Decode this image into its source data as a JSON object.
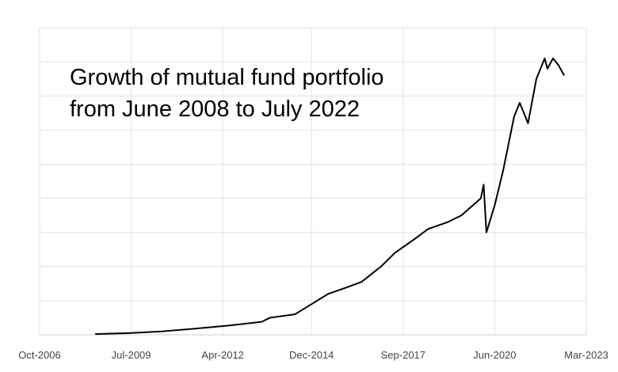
{
  "chart_data": {
    "type": "line",
    "title": "Growth of mutual fund portfolio from June 2008 to July 2022",
    "x": [
      "2008-06",
      "2009-06",
      "2010-06",
      "2011-06",
      "2012-06",
      "2013-06",
      "2013-09",
      "2014-06",
      "2015-01",
      "2015-06",
      "2016-01",
      "2016-06",
      "2017-01",
      "2017-06",
      "2018-01",
      "2018-06",
      "2019-01",
      "2019-06",
      "2020-01",
      "2020-02",
      "2020-03",
      "2020-06",
      "2020-09",
      "2021-01",
      "2021-03",
      "2021-06",
      "2021-09",
      "2021-12",
      "2022-01",
      "2022-03",
      "2022-05",
      "2022-07"
    ],
    "values": [
      0.02,
      0.05,
      0.1,
      0.18,
      0.27,
      0.38,
      0.5,
      0.6,
      0.95,
      1.2,
      1.4,
      1.55,
      2.0,
      2.4,
      2.8,
      3.1,
      3.3,
      3.5,
      4.0,
      4.4,
      3.0,
      3.8,
      4.8,
      6.4,
      6.8,
      6.2,
      7.5,
      8.1,
      7.8,
      8.1,
      7.9,
      7.6
    ],
    "color": "#000000",
    "xlim": [
      "2006-10",
      "2023-03"
    ],
    "xticks": [
      {
        "value": "2006-10",
        "label": "Oct-2006"
      },
      {
        "value": "2009-07",
        "label": "Jul-2009"
      },
      {
        "value": "2012-04",
        "label": "Apr-2012"
      },
      {
        "value": "2014-12",
        "label": "Dec-2014"
      },
      {
        "value": "2017-09",
        "label": "Sep-2017"
      },
      {
        "value": "2020-06",
        "label": "Jun-2020"
      },
      {
        "value": "2023-03",
        "label": "Mar-2023"
      }
    ],
    "ylim": [
      0,
      9
    ],
    "grid": true
  }
}
